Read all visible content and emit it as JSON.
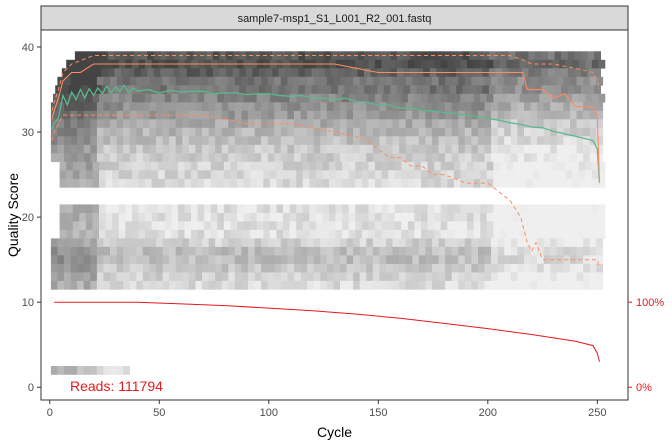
{
  "chart_data": {
    "type": "heatmap",
    "panel_title": "sample7-msp1_S1_L001_R2_001.fastq",
    "xlabel": "Cycle",
    "ylabel": "Quality Score",
    "xlim": [
      -4,
      264
    ],
    "ylim": [
      -1.5,
      42
    ],
    "x_ticks": [
      0,
      50,
      100,
      150,
      200,
      250
    ],
    "y_ticks": [
      0,
      10,
      20,
      30,
      40
    ],
    "right_axis_labels": [
      {
        "label": "100%",
        "y": 10
      },
      {
        "label": "0%",
        "y": 0
      }
    ],
    "reads_text": "Reads:  111794",
    "grid": false,
    "colors": {
      "mean": "#5cb88f",
      "median": "#fc8d62",
      "quartiles": "#fc8d62",
      "reads_line": "#e41a1c",
      "panel_border": "#333333",
      "strip_bg": "#d9d9d9"
    },
    "series": [
      {
        "style": "solid-green",
        "x": [
          1,
          2,
          4,
          6,
          8,
          10,
          12,
          14,
          16,
          18,
          20,
          22,
          24,
          26,
          28,
          30,
          32,
          34,
          36,
          38,
          40,
          45,
          50,
          55,
          60,
          65,
          70,
          75,
          80,
          85,
          90,
          95,
          100,
          105,
          110,
          115,
          120,
          125,
          130,
          135,
          140,
          145,
          150,
          155,
          160,
          165,
          170,
          175,
          180,
          185,
          190,
          195,
          200,
          205,
          210,
          215,
          220,
          225,
          230,
          235,
          240,
          245,
          248,
          250,
          251
        ],
        "y": [
          30.3,
          31.0,
          31.7,
          34.3,
          33.2,
          34.7,
          33.8,
          35.0,
          34.0,
          35.1,
          34.3,
          35.2,
          34.5,
          35.4,
          34.6,
          35.3,
          34.8,
          35.5,
          34.6,
          35.2,
          34.8,
          35.0,
          34.6,
          34.9,
          34.7,
          34.8,
          34.8,
          34.5,
          34.6,
          34.6,
          34.4,
          34.5,
          34.5,
          34.3,
          34.2,
          34.3,
          34.0,
          34.0,
          33.8,
          34.0,
          33.6,
          33.5,
          33.2,
          33.2,
          32.8,
          32.9,
          32.5,
          32.5,
          32.3,
          32.2,
          32.0,
          31.8,
          31.6,
          31.4,
          31.1,
          30.9,
          30.6,
          30.5,
          30.1,
          29.8,
          29.5,
          29.2,
          29.0,
          28.0,
          24.0
        ]
      },
      {
        "style": "solid-orange",
        "x": [
          1,
          2,
          4,
          6,
          10,
          14,
          20,
          30,
          40,
          50,
          60,
          70,
          80,
          90,
          100,
          110,
          120,
          130,
          140,
          150,
          160,
          165,
          170,
          180,
          190,
          200,
          210,
          216,
          218,
          225,
          230,
          235,
          240,
          245,
          247,
          248,
          250,
          251
        ],
        "y": [
          31.5,
          32.5,
          34.0,
          36.0,
          37.0,
          37.0,
          38.0,
          38.0,
          38.0,
          38.0,
          38.0,
          38.0,
          38.0,
          38.0,
          38.0,
          38.0,
          38.0,
          38.0,
          37.5,
          37.0,
          37.0,
          37.0,
          37.0,
          37.0,
          37.0,
          37.0,
          37.0,
          37.0,
          35.0,
          35.0,
          34.0,
          34.5,
          33.0,
          33.0,
          33.0,
          33.0,
          32.0,
          24.0
        ]
      },
      {
        "style": "dashed-orange",
        "x": [
          1,
          2,
          4,
          6,
          10,
          20,
          30,
          40,
          50,
          60,
          70,
          80,
          90,
          100,
          110,
          120,
          130,
          140,
          150,
          155,
          160,
          170,
          180,
          190,
          200,
          210,
          216,
          220,
          225,
          230,
          240,
          248,
          250,
          251
        ],
        "y": [
          32.5,
          33.5,
          35.0,
          37.0,
          38.0,
          39.0,
          39.0,
          39.0,
          39.0,
          39.0,
          39.0,
          39.0,
          39.0,
          39.0,
          39.0,
          39.0,
          39.0,
          39.0,
          39.0,
          39.0,
          39.0,
          39.0,
          39.0,
          39.0,
          39.0,
          39.0,
          38.5,
          38.0,
          38.0,
          38.0,
          37.5,
          37.0,
          36.0,
          35.0
        ]
      },
      {
        "style": "dashed-orange",
        "x": [
          1,
          2,
          4,
          6,
          10,
          20,
          30,
          40,
          50,
          60,
          70,
          80,
          90,
          100,
          110,
          120,
          130,
          140,
          145,
          150,
          155,
          160,
          165,
          170,
          175,
          180,
          190,
          200,
          205,
          210,
          215,
          218,
          220,
          222,
          225,
          228,
          230,
          240,
          250,
          251
        ],
        "y": [
          29.0,
          30.0,
          31.0,
          32.0,
          32.0,
          32.0,
          32.0,
          32.0,
          32.0,
          32.0,
          32.0,
          31.5,
          31.0,
          31.0,
          31.0,
          30.5,
          30.0,
          29.5,
          29.0,
          28.0,
          27.0,
          27.0,
          26.0,
          26.0,
          25.0,
          25.0,
          24.0,
          24.0,
          23.0,
          22.0,
          20.0,
          17.0,
          16.0,
          17.0,
          15.0,
          15.0,
          15.0,
          15.0,
          15.0,
          14.0
        ]
      },
      {
        "style": "reads-line",
        "x": [
          2,
          20,
          40,
          60,
          80,
          100,
          120,
          140,
          160,
          180,
          200,
          220,
          240,
          248,
          250,
          251
        ],
        "y": [
          10.0,
          10.0,
          10.0,
          9.8,
          9.6,
          9.3,
          9.0,
          8.6,
          8.1,
          7.5,
          6.9,
          6.2,
          5.4,
          4.9,
          4.0,
          3.0
        ]
      }
    ]
  }
}
